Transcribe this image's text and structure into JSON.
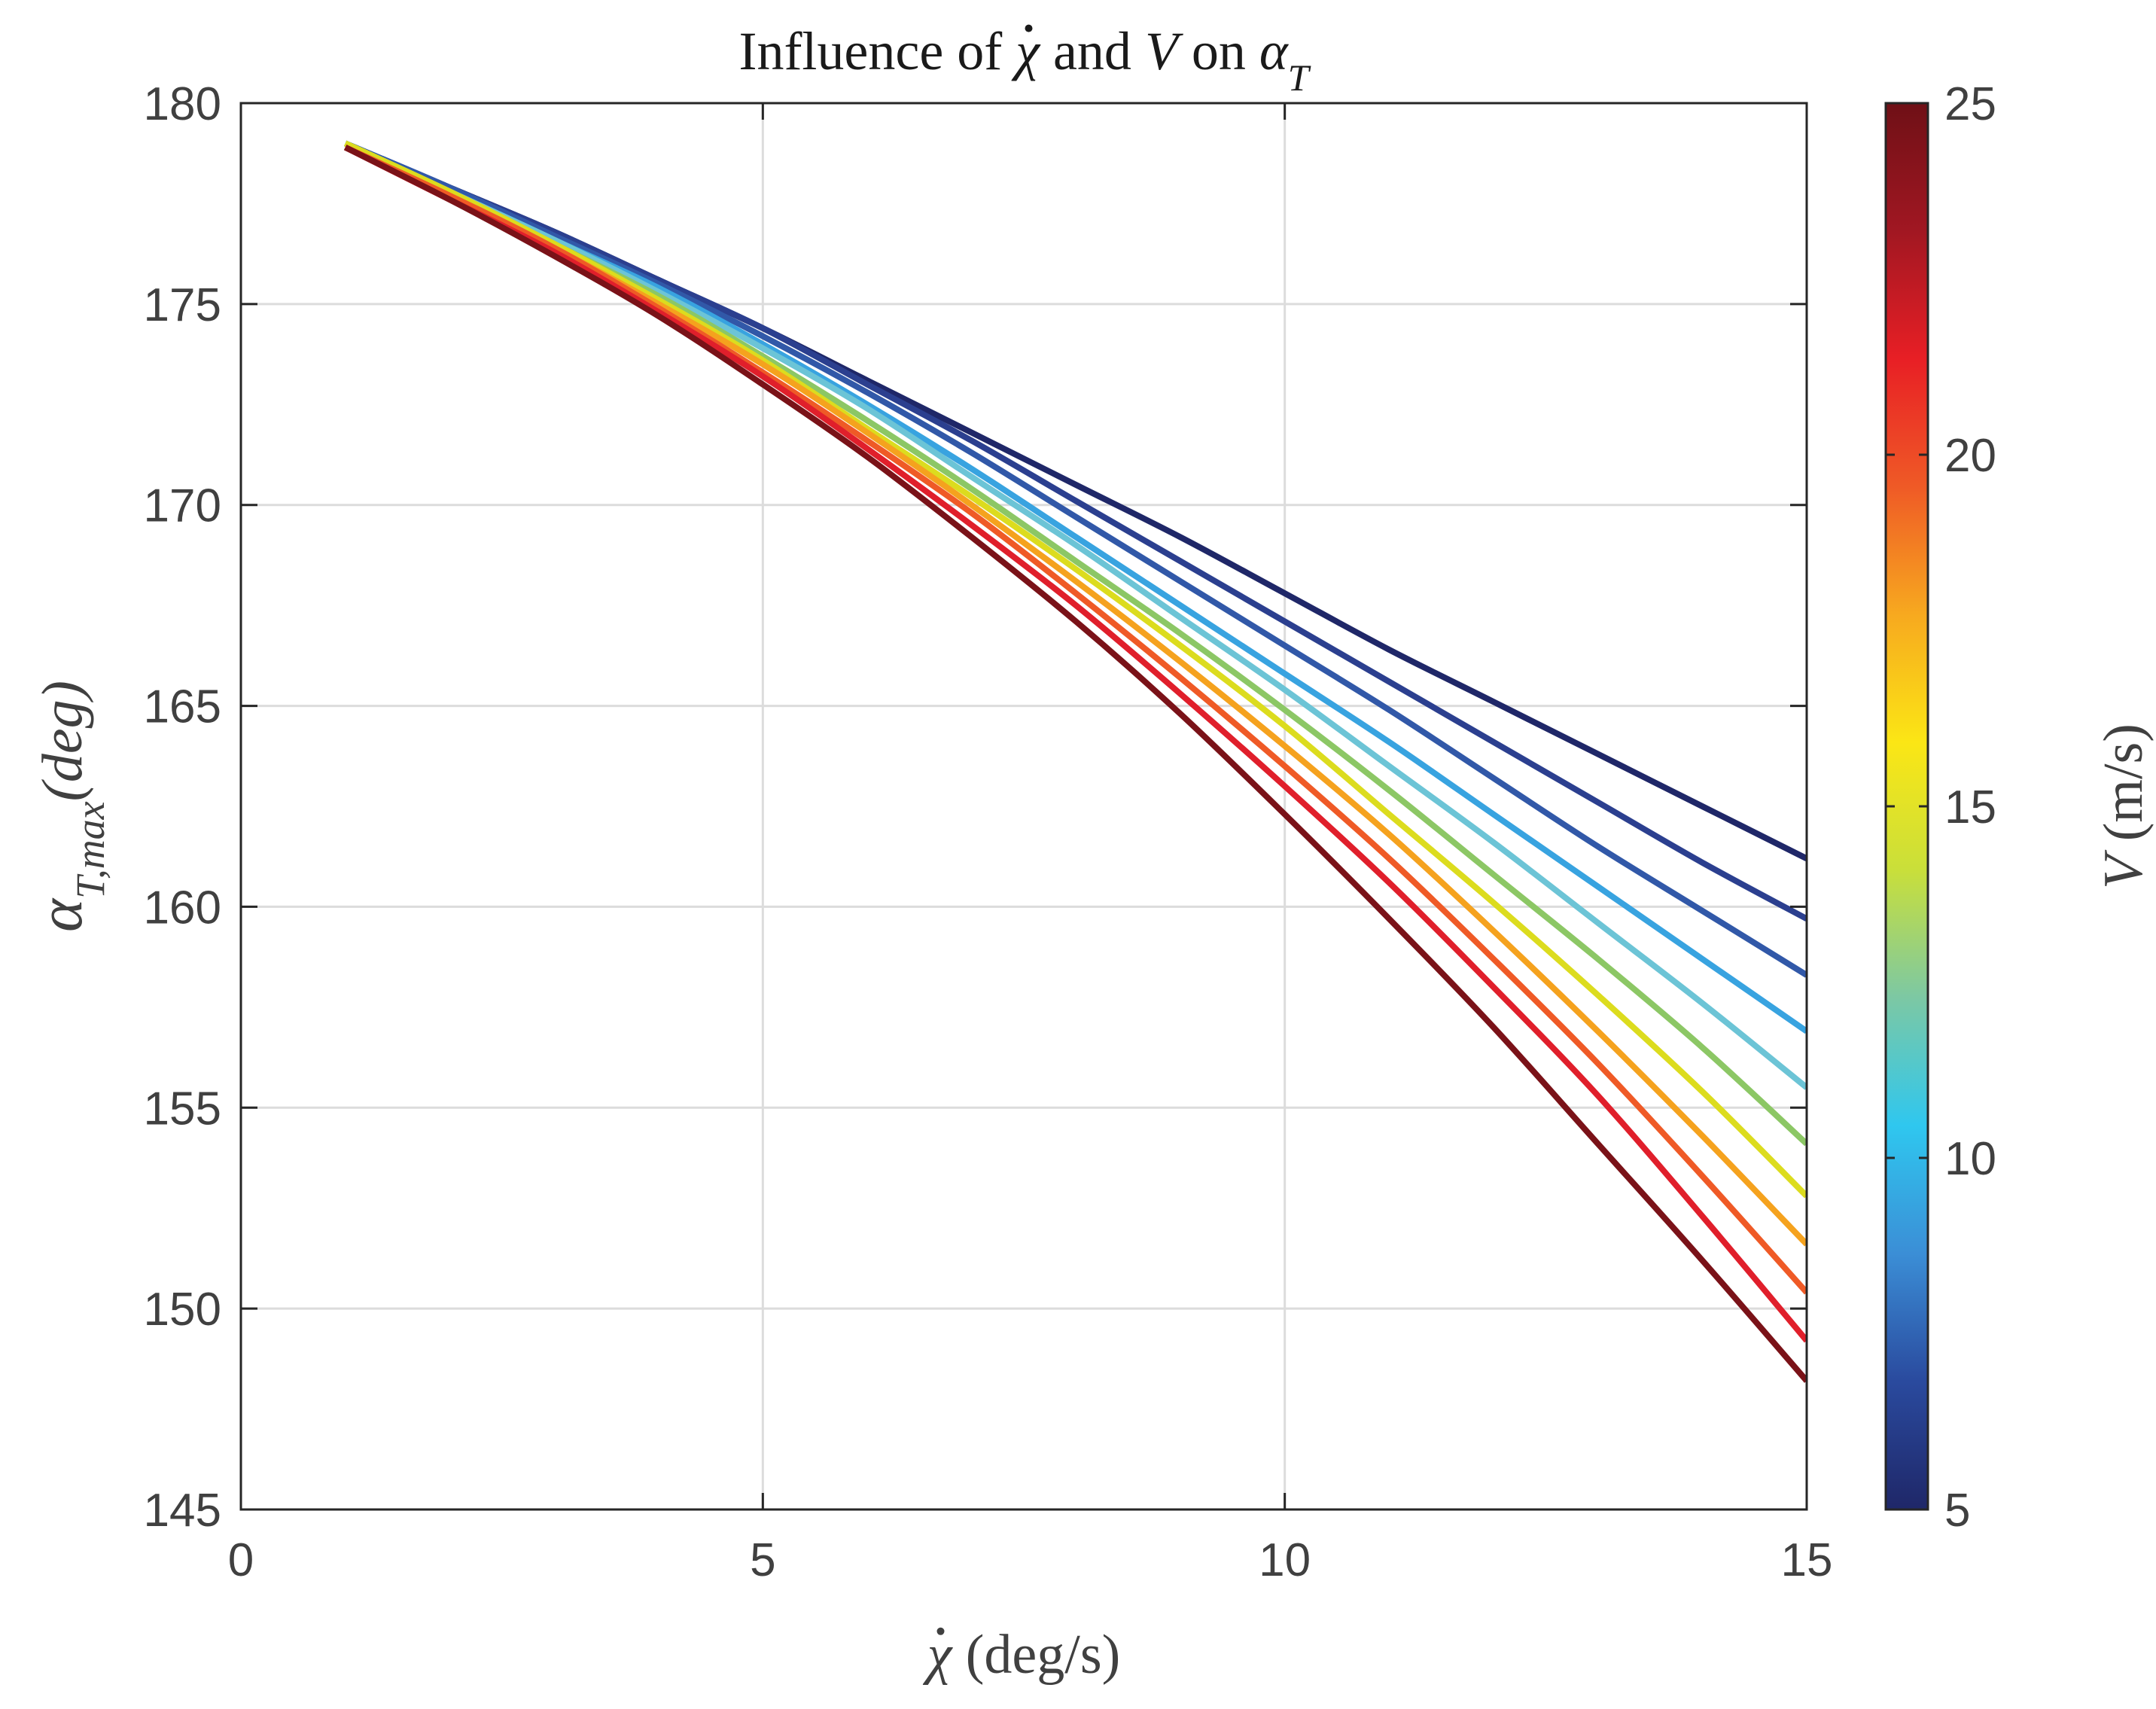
{
  "chart_data": {
    "type": "line",
    "title": {
      "prefix": "Influence of ",
      "chi_symbol": "χ",
      "middle": " and ",
      "v_symbol": "V",
      "on_text": " on ",
      "alpha_symbol": "α",
      "alpha_sub": "T"
    },
    "xlabel": {
      "symbol": "χ",
      "unit": " (deg/s)"
    },
    "ylabel": {
      "symbol": "α",
      "sub": "T,max",
      "unit": "(deg)"
    },
    "colorbar_label": {
      "symbol": "V",
      "unit": " (m/s)"
    },
    "xlim": [
      0,
      15
    ],
    "ylim": [
      145,
      180
    ],
    "x_ticks": [
      "0",
      "5",
      "10",
      "15"
    ],
    "y_ticks": [
      "145",
      "150",
      "155",
      "160",
      "165",
      "170",
      "175",
      "180"
    ],
    "colorbar": {
      "range": [
        5,
        25
      ],
      "ticks": [
        "5",
        "10",
        "15",
        "20",
        "25"
      ],
      "colormap": [
        "#1f2768",
        "#2a4a9e",
        "#3b8ed6",
        "#2fc7ef",
        "#7cc8a4",
        "#c9df3a",
        "#fbe615",
        "#f7a91f",
        "#ef5a26",
        "#e81f25",
        "#a11722",
        "#6f1016"
      ]
    },
    "grid": true,
    "x": [
      1,
      2,
      3,
      4,
      5,
      6,
      7,
      8,
      9,
      10,
      11,
      12,
      13,
      14,
      15
    ],
    "series": [
      {
        "name": "V = 5 m/s",
        "color": "#1f2768",
        "values": [
          179.0,
          177.9,
          176.8,
          175.6,
          174.4,
          173.1,
          171.8,
          170.5,
          169.2,
          167.8,
          166.4,
          165.1,
          163.8,
          162.5,
          161.2
        ]
      },
      {
        "name": "V = 7 m/s",
        "color": "#2b3f8f",
        "values": [
          179.0,
          177.9,
          176.8,
          175.6,
          174.4,
          173.0,
          171.6,
          170.1,
          168.6,
          167.1,
          165.6,
          164.1,
          162.6,
          161.1,
          159.7
        ]
      },
      {
        "name": "V = 9 m/s",
        "color": "#3158a8",
        "values": [
          179.0,
          177.9,
          176.7,
          175.5,
          174.2,
          172.8,
          171.3,
          169.7,
          168.1,
          166.5,
          164.9,
          163.2,
          161.5,
          159.9,
          158.3
        ]
      },
      {
        "name": "V = 11 m/s",
        "color": "#38a3e0",
        "values": [
          179.0,
          177.8,
          176.6,
          175.4,
          174.0,
          172.5,
          170.9,
          169.2,
          167.5,
          165.8,
          164.1,
          162.3,
          160.5,
          158.7,
          156.9
        ]
      },
      {
        "name": "V = 13 m/s",
        "color": "#6cc4d6",
        "values": [
          179.0,
          177.8,
          176.6,
          175.3,
          173.9,
          172.4,
          170.7,
          169.0,
          167.2,
          165.4,
          163.5,
          161.6,
          159.6,
          157.6,
          155.5
        ]
      },
      {
        "name": "V = 15 m/s",
        "color": "#8cc765",
        "values": [
          179.0,
          177.8,
          176.5,
          175.2,
          173.7,
          172.1,
          170.4,
          168.6,
          166.8,
          164.9,
          162.9,
          160.8,
          158.7,
          156.5,
          154.1
        ]
      },
      {
        "name": "V = 17 m/s",
        "color": "#dcdc1e",
        "values": [
          179.0,
          177.8,
          176.5,
          175.1,
          173.6,
          171.9,
          170.2,
          168.4,
          166.5,
          164.5,
          162.3,
          160.1,
          157.8,
          155.4,
          152.8
        ]
      },
      {
        "name": "V = 19 m/s",
        "color": "#f5a21e",
        "values": [
          178.9,
          177.7,
          176.4,
          175.0,
          173.5,
          171.8,
          170.0,
          168.1,
          166.1,
          164.0,
          161.8,
          159.4,
          156.9,
          154.3,
          151.6
        ]
      },
      {
        "name": "V = 21 m/s",
        "color": "#ef5a26",
        "values": [
          178.9,
          177.7,
          176.4,
          174.9,
          173.3,
          171.6,
          169.8,
          167.8,
          165.7,
          163.5,
          161.2,
          158.7,
          156.1,
          153.3,
          150.4
        ]
      },
      {
        "name": "V = 23 m/s",
        "color": "#e01f2b",
        "values": [
          178.9,
          177.6,
          176.3,
          174.8,
          173.2,
          171.4,
          169.5,
          167.5,
          165.3,
          163.0,
          160.6,
          158.0,
          155.3,
          152.3,
          149.2
        ]
      },
      {
        "name": "V = 25 m/s",
        "color": "#7a1218",
        "values": [
          178.9,
          177.6,
          176.2,
          174.7,
          173.0,
          171.2,
          169.2,
          167.1,
          164.8,
          162.3,
          159.7,
          157.0,
          154.1,
          151.2,
          148.2
        ]
      }
    ]
  }
}
